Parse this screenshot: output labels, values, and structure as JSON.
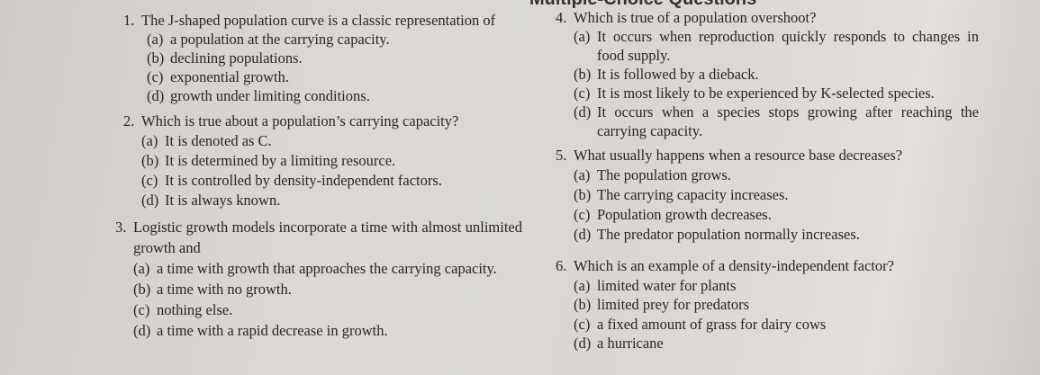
{
  "header": {
    "title": "Multiple-Choice Questions"
  },
  "questions": [
    {
      "number": "1.",
      "stem": "The J-shaped population curve is a classic representation of",
      "options": [
        {
          "letter": "(a)",
          "text": "a population at the carrying capacity."
        },
        {
          "letter": "(b)",
          "text": "declining populations."
        },
        {
          "letter": "(c)",
          "text": "exponential growth."
        },
        {
          "letter": "(d)",
          "text": "growth under limiting conditions."
        }
      ]
    },
    {
      "number": "2.",
      "stem": "Which is true about a population’s carrying capacity?",
      "options": [
        {
          "letter": "(a)",
          "text": "It is denoted as C."
        },
        {
          "letter": "(b)",
          "text": "It is determined by a limiting resource."
        },
        {
          "letter": "(c)",
          "text": "It is controlled by density-independent factors."
        },
        {
          "letter": "(d)",
          "text": "It is always known."
        }
      ]
    },
    {
      "number": "3.",
      "stem": "Logistic growth models incorporate a time with almost unlimited growth and",
      "options": [
        {
          "letter": "(a)",
          "text": "a time with growth that approaches the carrying capacity."
        },
        {
          "letter": "(b)",
          "text": "a time with no growth."
        },
        {
          "letter": "(c)",
          "text": "nothing else."
        },
        {
          "letter": "(d)",
          "text": "a time with a rapid decrease in growth."
        }
      ]
    },
    {
      "number": "4.",
      "stem": "Which is true of a population overshoot?",
      "options": [
        {
          "letter": "(a)",
          "text": "It occurs when reproduction quickly responds to changes in food supply."
        },
        {
          "letter": "(b)",
          "text": "It is followed by a dieback."
        },
        {
          "letter": "(c)",
          "text": "It is most likely to be experienced by K-selected species."
        },
        {
          "letter": "(d)",
          "text": "It occurs when a species stops growing after reaching the carrying capacity."
        }
      ]
    },
    {
      "number": "5.",
      "stem": "What usually happens when a resource base decreases?",
      "options": [
        {
          "letter": "(a)",
          "text": "The population grows."
        },
        {
          "letter": "(b)",
          "text": "The carrying capacity increases."
        },
        {
          "letter": "(c)",
          "text": "Population growth decreases."
        },
        {
          "letter": "(d)",
          "text": "The predator population normally increases."
        }
      ]
    },
    {
      "number": "6.",
      "stem": "Which is an example of a density-independent factor?",
      "options": [
        {
          "letter": "(a)",
          "text": "limited water for plants"
        },
        {
          "letter": "(b)",
          "text": "limited prey for predators"
        },
        {
          "letter": "(c)",
          "text": "a fixed amount of grass for dairy cows"
        },
        {
          "letter": "(d)",
          "text": "a hurricane"
        }
      ]
    }
  ]
}
